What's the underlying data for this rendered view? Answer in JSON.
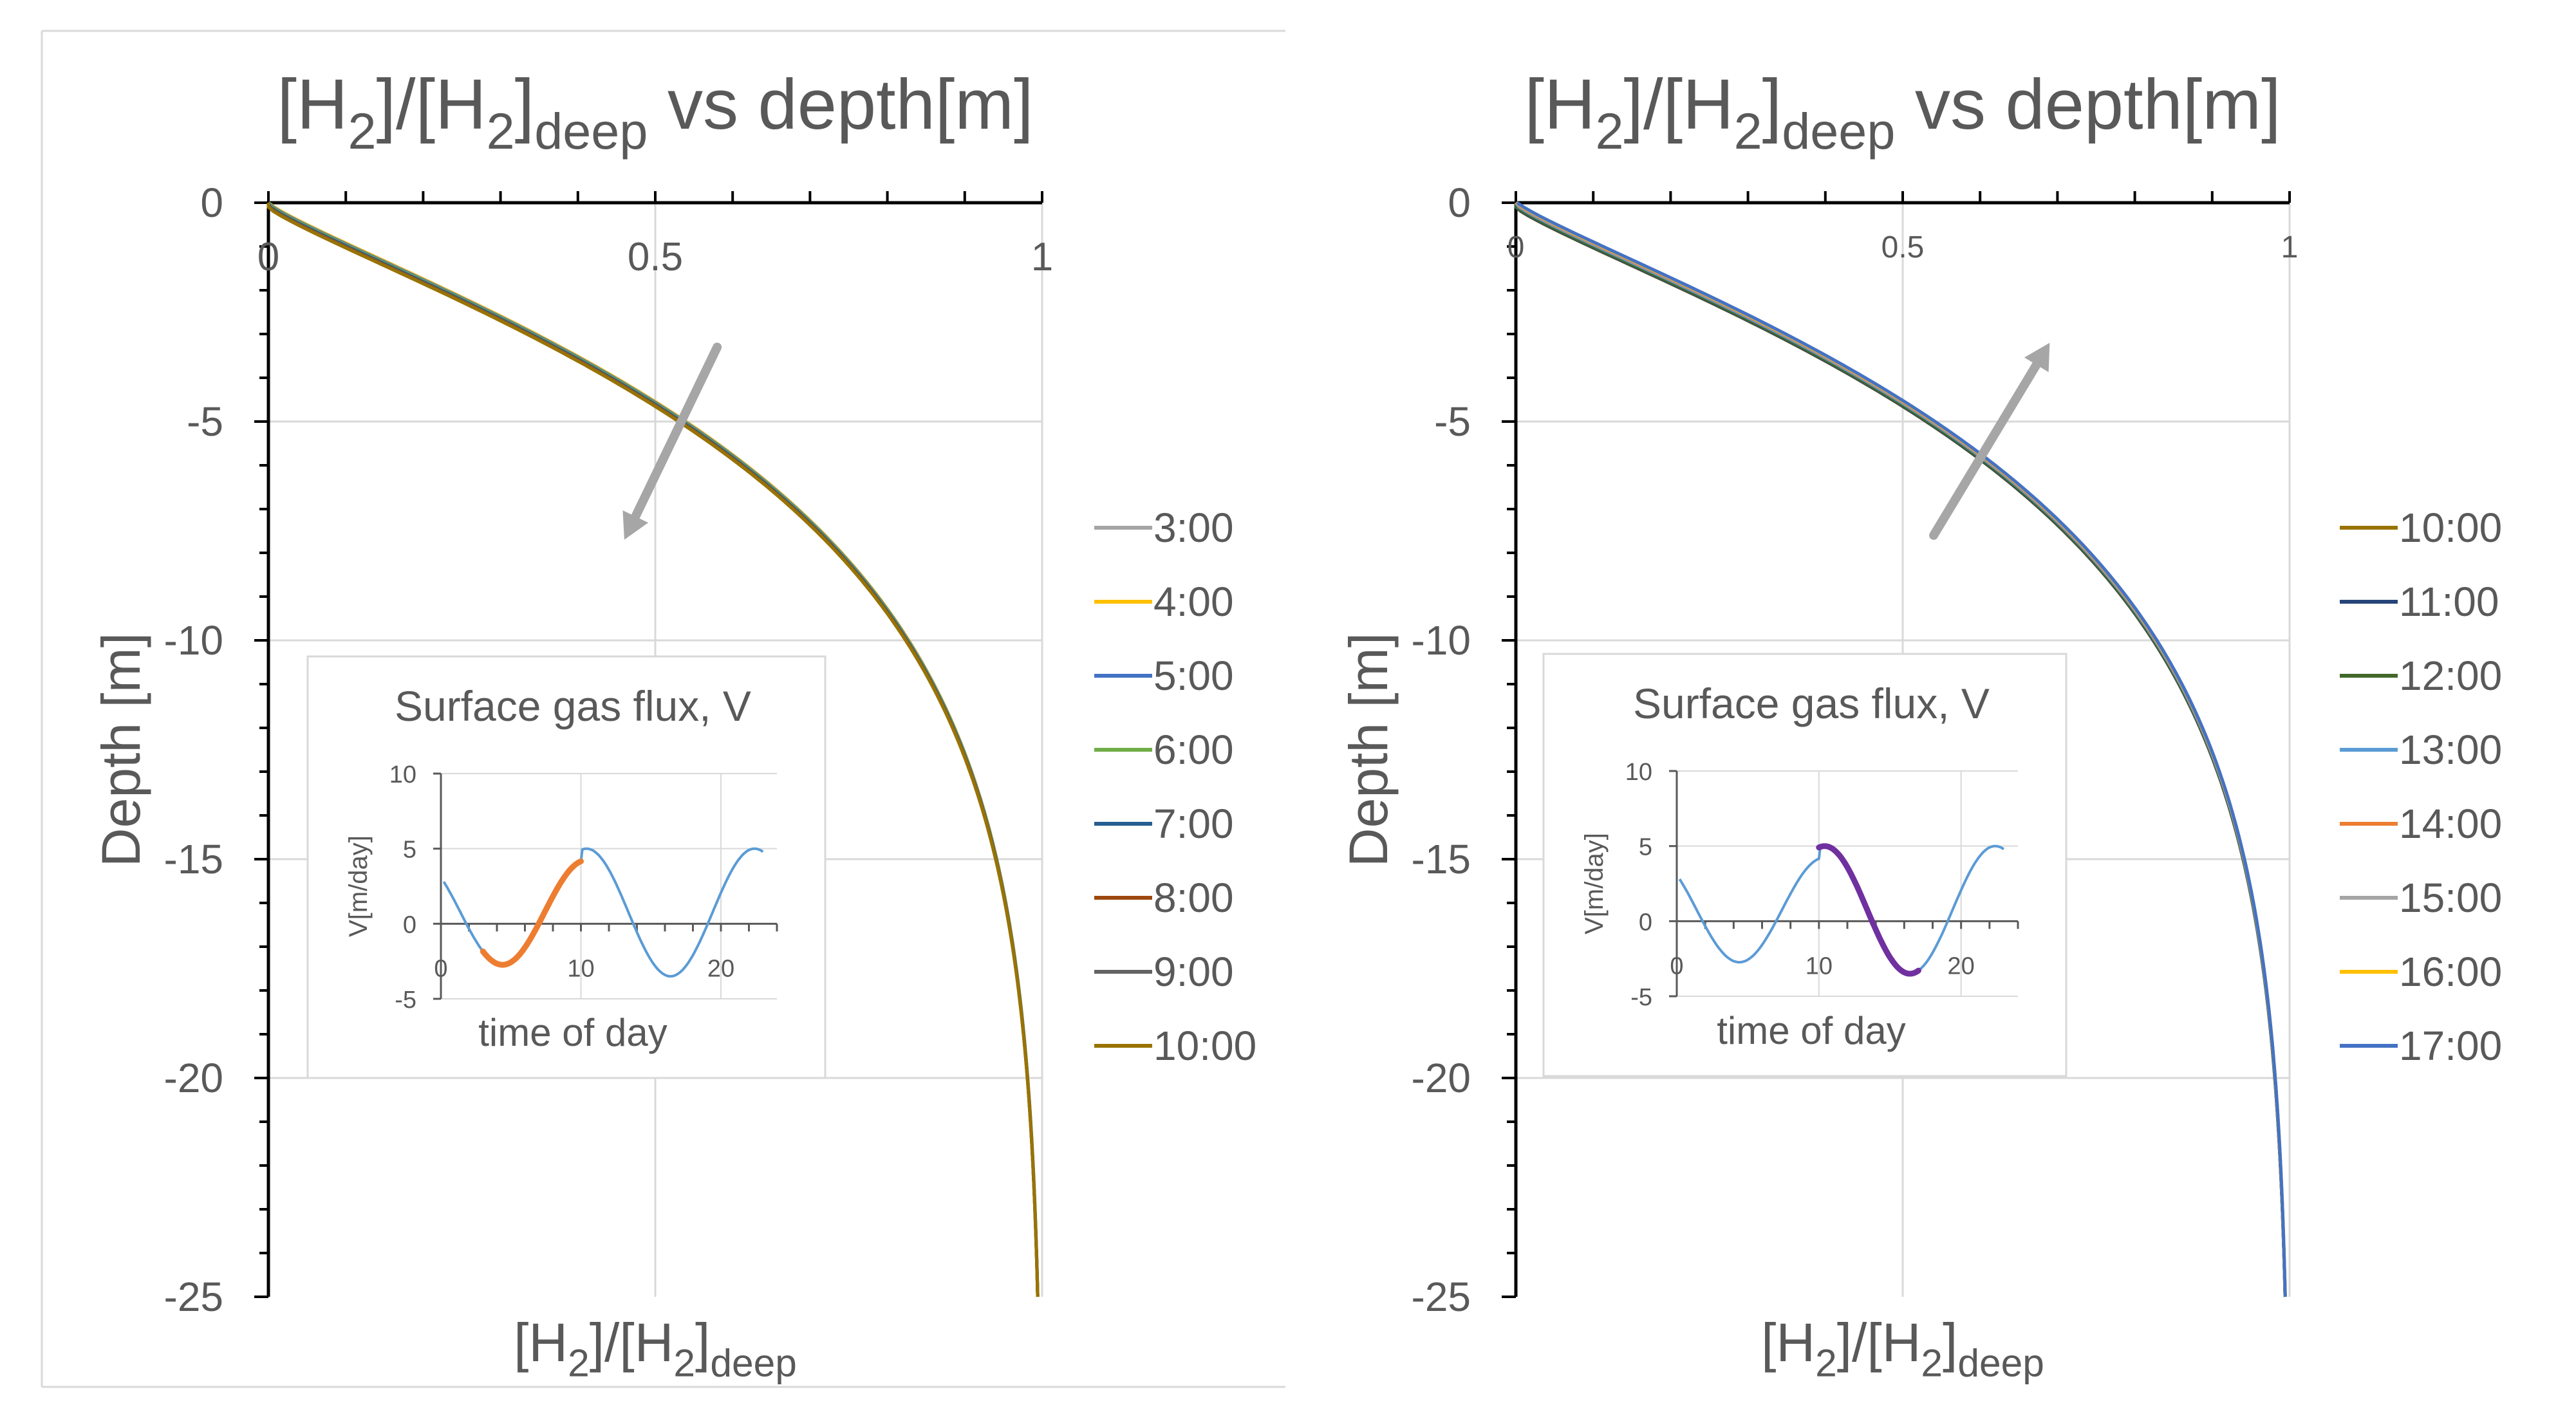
{
  "chart_data": [
    {
      "type": "line",
      "title": {
        "main": "[H",
        "sub1": "2",
        "mid": "]/[H",
        "sub2": "2",
        "close": "]",
        "sub3": "deep",
        "tail": " vs depth[m]"
      },
      "xlabel": {
        "main": "[H",
        "sub1": "2",
        "mid": "]/[H",
        "sub2": "2",
        "close": "]",
        "sub3": "deep"
      },
      "ylabel": "Depth [m]",
      "xlim": [
        0,
        1
      ],
      "ylim": [
        -25,
        0
      ],
      "x_ticks": [
        "0",
        "0.5",
        "1"
      ],
      "y_ticks": [
        "0",
        "-5",
        "-10",
        "-15",
        "-20",
        "-25"
      ],
      "arrow": {
        "from": {
          "x": 0.58,
          "y": -3.3
        },
        "to": {
          "x": 0.46,
          "y": -7.7
        }
      },
      "series": [
        {
          "name": "3:00",
          "color": "#a5a5a5",
          "curvature": 0.0
        },
        {
          "name": "4:00",
          "color": "#ffc000",
          "curvature": 0.05
        },
        {
          "name": "5:00",
          "color": "#4472c4",
          "curvature": 0.55
        },
        {
          "name": "6:00",
          "color": "#70ad47",
          "curvature": 1.05
        },
        {
          "name": "7:00",
          "color": "#255e91",
          "curvature": 1.6
        },
        {
          "name": "8:00",
          "color": "#9e480e",
          "curvature": 2.2
        },
        {
          "name": "9:00",
          "color": "#636363",
          "curvature": 2.6
        },
        {
          "name": "10:00",
          "color": "#997300",
          "curvature": 2.8
        }
      ],
      "inset": {
        "title": "Surface gas flux, V",
        "xlabel": "time of day",
        "ylabel": "V[m/day]",
        "x_ticks": [
          "0",
          "10",
          "20"
        ],
        "y_ticks": [
          "10",
          "5",
          "0",
          "-5"
        ],
        "xlim": [
          0,
          24
        ],
        "ylim": [
          -5,
          10
        ],
        "curve_color": "#5b9bd5",
        "highlight": {
          "from": 3,
          "to": 10,
          "color": "#ed7d31"
        }
      }
    },
    {
      "type": "line",
      "title": {
        "main": "[H",
        "sub1": "2",
        "mid": "]/[H",
        "sub2": "2",
        "close": "]",
        "sub3": "deep",
        "tail": " vs depth[m]"
      },
      "xlabel": {
        "main": "[H",
        "sub1": "2",
        "mid": "]/[H",
        "sub2": "2",
        "close": "]",
        "sub3": "deep"
      },
      "ylabel": "Depth [m]",
      "xlim": [
        0,
        1
      ],
      "ylim": [
        -25,
        0
      ],
      "x_ticks": [
        "0",
        "0.5",
        "1"
      ],
      "y_ticks": [
        "0",
        "-5",
        "-10",
        "-15",
        "-20",
        "-25"
      ],
      "arrow": {
        "from": {
          "x": 0.54,
          "y": -7.6
        },
        "to": {
          "x": 0.69,
          "y": -3.2
        }
      },
      "series": [
        {
          "name": "10:00",
          "color": "#997300",
          "curvature": 2.8
        },
        {
          "name": "11:00",
          "color": "#264478",
          "curvature": 2.6
        },
        {
          "name": "12:00",
          "color": "#43682b",
          "curvature": 2.1
        },
        {
          "name": "13:00",
          "color": "#5b9bd5",
          "curvature": 1.0
        },
        {
          "name": "14:00",
          "color": "#ed7d31",
          "curvature": 0.3
        },
        {
          "name": "15:00",
          "color": "#a5a5a5",
          "curvature": -0.15
        },
        {
          "name": "16:00",
          "color": "#ffc000",
          "curvature": -0.45
        },
        {
          "name": "17:00",
          "color": "#4472c4",
          "curvature": -0.65
        }
      ],
      "inset": {
        "title": "Surface gas flux, V",
        "xlabel": "time of day",
        "ylabel": "V[m/day]",
        "x_ticks": [
          "0",
          "10",
          "20"
        ],
        "y_ticks": [
          "10",
          "5",
          "0",
          "-5"
        ],
        "xlim": [
          0,
          24
        ],
        "ylim": [
          -5,
          10
        ],
        "curve_color": "#5b9bd5",
        "highlight": {
          "from": 10,
          "to": 17,
          "color": "#7030a0"
        }
      }
    }
  ]
}
